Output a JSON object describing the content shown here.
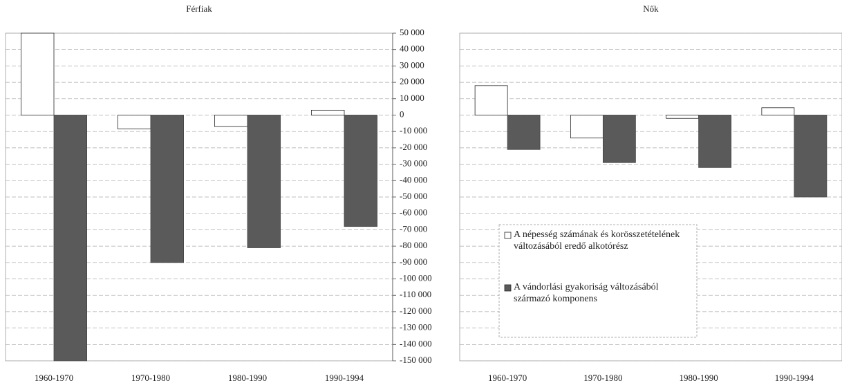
{
  "chart_data": [
    {
      "type": "bar",
      "title": "Férfiak",
      "categories": [
        "1960-1970",
        "1970-1980",
        "1980-1990",
        "1990-1994"
      ],
      "series": [
        {
          "name": "A népesség számának és korösszetételének változásából eredő alkotórész",
          "color": "#ffffff",
          "values": [
            50000,
            -8500,
            -7000,
            3000
          ]
        },
        {
          "name": "A vándorlási gyakoriság változásából származó komponens",
          "color": "#5a5a5a",
          "values": [
            -150000,
            -90000,
            -81000,
            -68000
          ]
        }
      ],
      "ylim": [
        -150000,
        50000
      ],
      "yticks": [
        {
          "value": 50000,
          "label": "50 000"
        },
        {
          "value": 40000,
          "label": "40 000"
        },
        {
          "value": 30000,
          "label": "30 000"
        },
        {
          "value": 20000,
          "label": "20 000"
        },
        {
          "value": 10000,
          "label": "10 000"
        },
        0,
        {
          "value": -10000,
          "label": "-10 000"
        },
        {
          "value": -20000,
          "label": "-20 000"
        },
        {
          "value": -30000,
          "label": "-30 000"
        },
        {
          "value": -40000,
          "label": "-40 000"
        },
        {
          "value": -50000,
          "label": "-50 000"
        },
        {
          "value": -60000,
          "label": "-60 000"
        },
        {
          "value": -70000,
          "label": "-70 000"
        },
        {
          "value": -80000,
          "label": "-80 000"
        },
        {
          "value": -90000,
          "label": "-90 000"
        },
        {
          "value": -100000,
          "label": "-100 000"
        },
        {
          "value": -110000,
          "label": "-110 000"
        },
        {
          "value": -120000,
          "label": "-120 000"
        },
        {
          "value": -130000,
          "label": "-130 000"
        },
        {
          "value": -140000,
          "label": "-140 000"
        },
        {
          "value": -150000,
          "label": "-150 000"
        }
      ],
      "grid": true
    },
    {
      "type": "bar",
      "title": "Nők",
      "categories": [
        "1960-1970",
        "1970-1980",
        "1980-1990",
        "1990-1994"
      ],
      "series": [
        {
          "name": "A népesség számának és korösszetételének változásából eredő alkotórész",
          "color": "#ffffff",
          "values": [
            18000,
            -14000,
            -2000,
            4500
          ]
        },
        {
          "name": "A vándorlási gyakoriság változásából származó komponens",
          "color": "#5a5a5a",
          "values": [
            -21000,
            -29000,
            -32000,
            -50000
          ]
        }
      ],
      "ylim": [
        -150000,
        50000
      ],
      "grid": true,
      "legend": "center"
    }
  ]
}
